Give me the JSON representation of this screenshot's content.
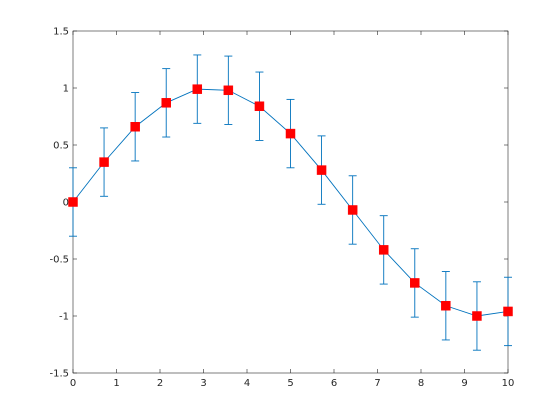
{
  "chart_data": {
    "type": "line",
    "title": "",
    "xlabel": "",
    "ylabel": "",
    "xlim": [
      0,
      10
    ],
    "ylim": [
      -1.5,
      1.5
    ],
    "x_ticks": [
      0,
      1,
      2,
      3,
      4,
      5,
      6,
      7,
      8,
      9,
      10
    ],
    "x_tick_labels": [
      "0",
      "1",
      "2",
      "3",
      "4",
      "5",
      "6",
      "7",
      "8",
      "9",
      "10"
    ],
    "y_ticks": [
      1.5,
      1,
      0.5,
      0,
      -0.5,
      -1,
      -1.5
    ],
    "y_tick_labels": [
      "1.5",
      "1",
      "0.5",
      "0",
      "-0.5",
      "-1",
      "-1.5"
    ],
    "grid": false,
    "box": true,
    "series": [
      {
        "x": [
          0,
          0.714,
          1.429,
          2.143,
          2.857,
          3.571,
          4.286,
          5.0,
          5.714,
          6.429,
          7.143,
          7.857,
          8.571,
          9.286,
          10.0
        ],
        "y": [
          0,
          0.35,
          0.66,
          0.87,
          0.99,
          0.98,
          0.84,
          0.6,
          0.28,
          -0.07,
          -0.42,
          -0.71,
          -0.91,
          -1.0,
          -0.96
        ],
        "error": 0.3,
        "line_color": "#0072bd",
        "marker_color": "#ff0000",
        "marker": "square"
      }
    ]
  }
}
